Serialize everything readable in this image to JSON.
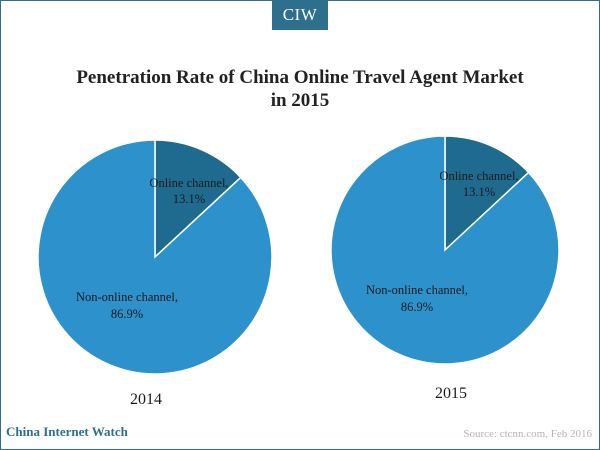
{
  "header": {
    "logo_text": "CIW"
  },
  "footer": {
    "brand": "China Internet Watch",
    "source": "Source: ctcnn.com, Feb 2016"
  },
  "colors": {
    "online": "#1f6b8f",
    "non_online": "#2d92cc",
    "slice_stroke": "#ffffff",
    "frame": "#2e6f8e"
  },
  "chart_data": {
    "type": "pie",
    "title": [
      "Penetration Rate of China Online Travel Agent Market",
      "in 2015"
    ],
    "charts": [
      {
        "year": "2014",
        "slices": [
          {
            "label": "Online channel,",
            "value": 13.1,
            "value_label": "13.1%"
          },
          {
            "label": "Non-online channel,",
            "value": 86.9,
            "value_label": "86.9%"
          }
        ]
      },
      {
        "year": "2015",
        "slices": [
          {
            "label": "Online channel,",
            "value": 13.1,
            "value_label": "13.1%"
          },
          {
            "label": "Non-online channel,",
            "value": 86.9,
            "value_label": "86.9%"
          }
        ]
      }
    ]
  }
}
